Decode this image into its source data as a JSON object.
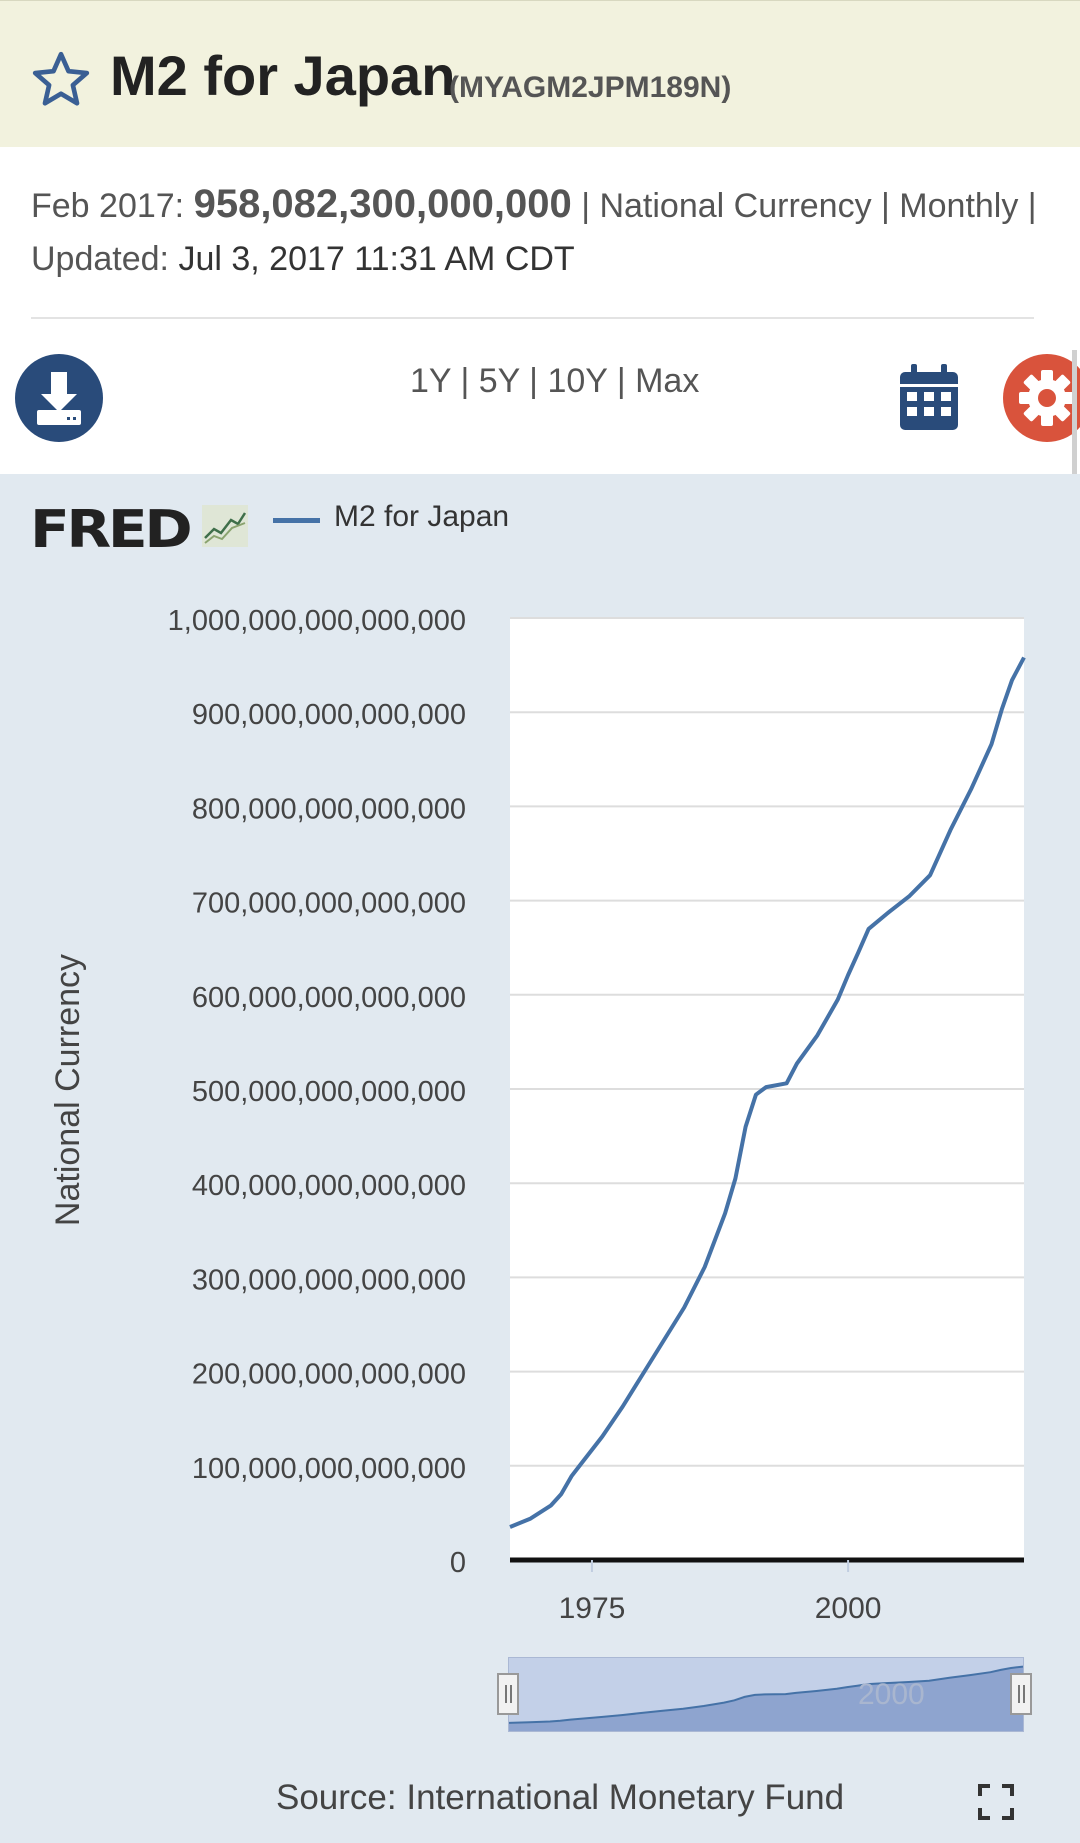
{
  "header": {
    "title": "M2 for Japan",
    "series_id": "(MYAGM2JPM189N)",
    "latest_period": "Feb 2017:",
    "latest_value": "958,082,300,000,000",
    "units_line": "| National Currency | Monthly |",
    "updated_label": "Updated:",
    "updated_value": "Jul 3, 2017 11:31 AM CDT"
  },
  "toolbar": {
    "ranges": [
      "1Y",
      "5Y",
      "10Y",
      "Max"
    ],
    "icons": [
      "download-icon",
      "calendar-icon",
      "gear-icon"
    ]
  },
  "legend": {
    "logo": "FRED",
    "series_label": "M2 for Japan"
  },
  "source": "Source: International Monetary Fund",
  "colors": {
    "series": "#4572a7",
    "panel_bg": "#e1e9f0",
    "title_bar": "#f2f2de",
    "download": "#294b7a",
    "settings": "#d9533c"
  },
  "chart_data": {
    "type": "line",
    "title": "M2 for Japan",
    "xlabel": "",
    "ylabel": "National Currency",
    "xlim": [
      1967,
      2017.17
    ],
    "ylim": [
      0,
      1000000000000000
    ],
    "grid": true,
    "y_ticks": [
      {
        "value": 0,
        "label": "0"
      },
      {
        "value": 100000000000000,
        "label": "100,000,000,000,000"
      },
      {
        "value": 200000000000000,
        "label": "200,000,000,000,000"
      },
      {
        "value": 300000000000000,
        "label": "300,000,000,000,000"
      },
      {
        "value": 400000000000000,
        "label": "400,000,000,000,000"
      },
      {
        "value": 500000000000000,
        "label": "500,000,000,000,000"
      },
      {
        "value": 600000000000000,
        "label": "600,000,000,000,000"
      },
      {
        "value": 700000000000000,
        "label": "700,000,000,000,000"
      },
      {
        "value": 800000000000000,
        "label": "800,000,000,000,000"
      },
      {
        "value": 900000000000000,
        "label": "900,000,000,000,000"
      },
      {
        "value": 1000000000000000,
        "label": "1,000,000,000,000,000"
      }
    ],
    "x_ticks": [
      {
        "value": 1975,
        "label": "1975"
      },
      {
        "value": 2000,
        "label": "2000"
      }
    ],
    "navigator_label": "2000",
    "series": [
      {
        "name": "M2 for Japan",
        "x": [
          1967,
          1969,
          1971,
          1972,
          1973,
          1974,
          1976,
          1978,
          1980,
          1982,
          1984,
          1986,
          1988,
          1989,
          1990,
          1991,
          1992,
          1994,
          1995,
          1997,
          1999,
          2000,
          2001,
          2002,
          2004,
          2006,
          2008,
          2010,
          2012,
          2014,
          2015,
          2016,
          2017.17
        ],
        "y": [
          35000000000000,
          44000000000000,
          58000000000000,
          70000000000000,
          89000000000000,
          103000000000000,
          131000000000000,
          163000000000000,
          198000000000000,
          233000000000000,
          268000000000000,
          311000000000000,
          368000000000000,
          405000000000000,
          460000000000000,
          494000000000000,
          502000000000000,
          506000000000000,
          527000000000000,
          557000000000000,
          595000000000000,
          621000000000000,
          645000000000000,
          670000000000000,
          688000000000000,
          705000000000000,
          727000000000000,
          775000000000000,
          818000000000000,
          866000000000000,
          903000000000000,
          934000000000000,
          958082300000000
        ]
      }
    ]
  }
}
